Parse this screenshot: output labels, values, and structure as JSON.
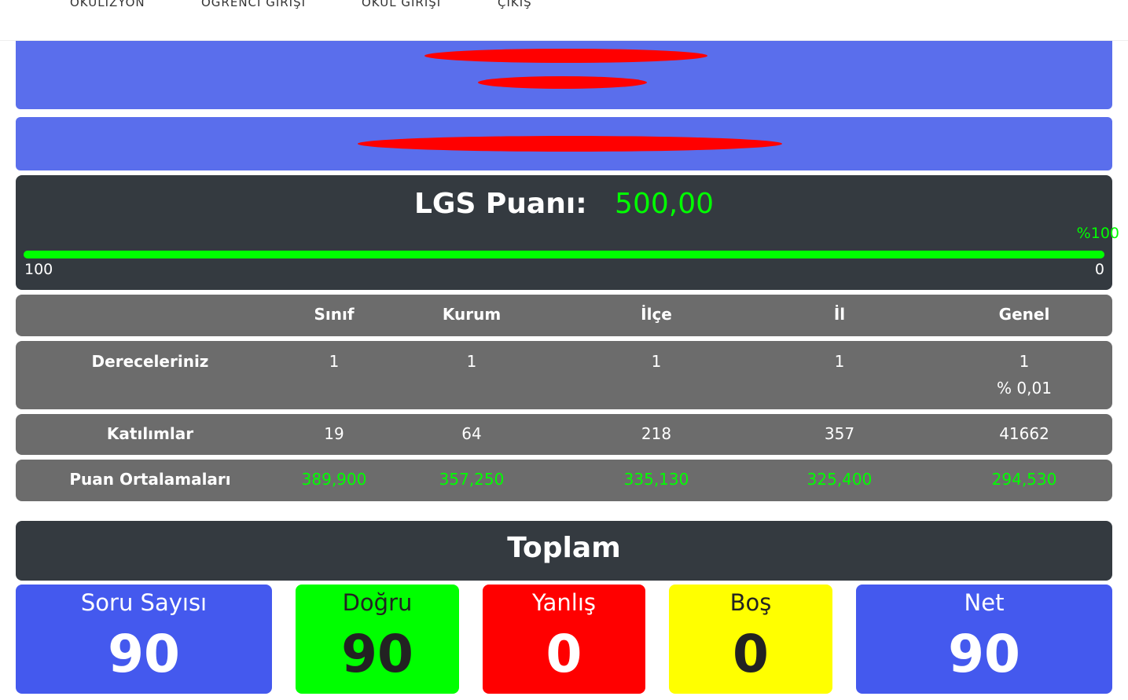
{
  "nav": [
    "OKULİZYON",
    "ÖĞRENCİ GİRİŞİ",
    "OKUL GİRİŞİ",
    "ÇIKIŞ"
  ],
  "score": {
    "label": "LGS Puanı:",
    "value": "500,00",
    "percent_label": "%100",
    "progress_percent": 100,
    "min_label": "100",
    "max_label": "0"
  },
  "table": {
    "headers": [
      "",
      "Sınıf",
      "Kurum",
      "İlçe",
      "İl",
      "Genel"
    ],
    "rows": [
      {
        "label": "Dereceleriniz",
        "values": [
          "1",
          "1",
          "1",
          "1",
          "1"
        ],
        "extra": "% 0,01"
      },
      {
        "label": "Katılımlar",
        "values": [
          "19",
          "64",
          "218",
          "357",
          "41662"
        ]
      },
      {
        "label": "Puan Ortalamaları",
        "values": [
          "389,900",
          "357,250",
          "335,130",
          "325,400",
          "294,530"
        ]
      }
    ]
  },
  "totals": {
    "title": "Toplam",
    "boxes": [
      {
        "label": "Soru Sayısı",
        "value": "90",
        "color": "#4459ee"
      },
      {
        "label": "Doğru",
        "value": "90",
        "color": "#00ff00"
      },
      {
        "label": "Yanlış",
        "value": "0",
        "color": "#ff0000"
      },
      {
        "label": "Boş",
        "value": "0",
        "color": "#ffff00"
      },
      {
        "label": "Net",
        "value": "90",
        "color": "#4459ee"
      }
    ]
  }
}
